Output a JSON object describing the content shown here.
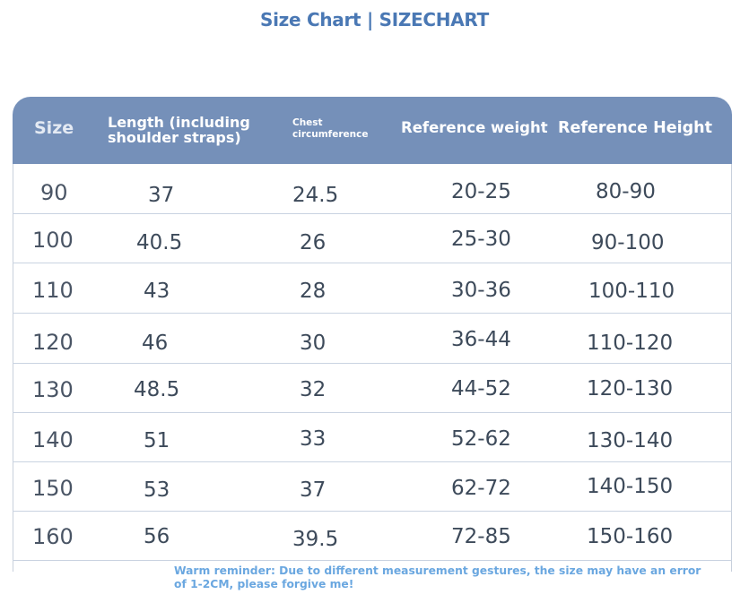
{
  "title": "Size Chart | SIZECHART",
  "table": {
    "headers": {
      "size": "Size",
      "length_line1": "Length (including",
      "length_line2": "shoulder straps)",
      "chest_line1": "Chest",
      "chest_line2": "circumference",
      "weight": "Reference weight",
      "height": "Reference Height"
    },
    "rows": [
      {
        "size": "90",
        "length": "37",
        "chest": "24.5",
        "weight": "20-25",
        "height": "80-90"
      },
      {
        "size": "100",
        "length": "40.5",
        "chest": "26",
        "weight": "25-30",
        "height": "90-100"
      },
      {
        "size": "110",
        "length": "43",
        "chest": "28",
        "weight": "30-36",
        "height": "100-110"
      },
      {
        "size": "120",
        "length": "46",
        "chest": "30",
        "weight": "36-44",
        "height": "110-120"
      },
      {
        "size": "130",
        "length": "48.5",
        "chest": "32",
        "weight": "44-52",
        "height": "120-130"
      },
      {
        "size": "140",
        "length": "51",
        "chest": "33",
        "weight": "52-62",
        "height": "130-140"
      },
      {
        "size": "150",
        "length": "53",
        "chest": "37",
        "weight": "62-72",
        "height": "140-150"
      },
      {
        "size": "160",
        "length": "56",
        "chest": "39.5",
        "weight": "72-85",
        "height": "150-160"
      }
    ]
  },
  "note": {
    "line1": "Warm reminder: Due to different measurement gestures, the size may have an error",
    "line2": "of 1-2CM, please forgive me!"
  },
  "colors": {
    "title": "#4a78b4",
    "header_bg": "#7590b9",
    "note": "#6aa7e0"
  }
}
